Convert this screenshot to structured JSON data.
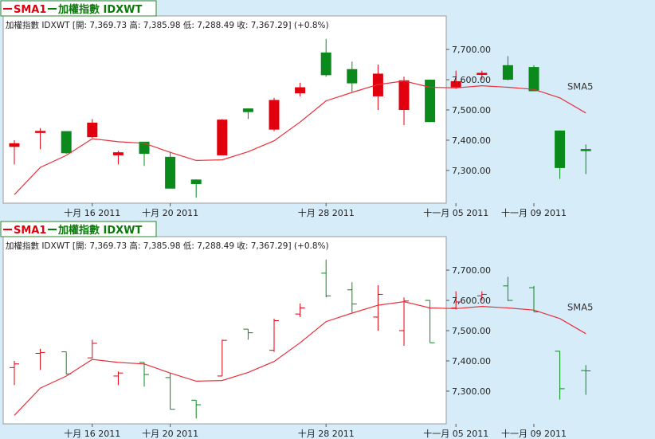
{
  "colors": {
    "background": "#d6ecf9",
    "plot_bg": "#ffffff",
    "up": "#e0000e",
    "down": "#0a8a1a",
    "sma": "#e8303a",
    "legend_sma": "#e0000e",
    "legend_index": "#0a7a0a"
  },
  "panels": [
    {
      "legend_sma": "SMA1",
      "legend_index": "加權指數 IDXWT",
      "info": "加權指數 IDXWT [開: 7,369.73  高: 7,385.98  低: 7,288.49  收: 7,367.29] (+0.8%)",
      "sma_label": "SMA5"
    },
    {
      "legend_sma": "SMA1",
      "legend_index": "加權指數 IDXWT",
      "info": "加權指數 IDXWT [開: 7,369.73  高: 7,385.98  低: 7,288.49  收: 7,367.29] (+0.8%)",
      "sma_label": "SMA5"
    }
  ],
  "chart_data": [
    {
      "type": "candlestick",
      "title": "加權指數 IDXWT",
      "ylim": [
        7200,
        7750
      ],
      "yticks": [
        "7,300.00",
        "7,400.00",
        "7,500.00",
        "7,600.00",
        "7,700.00"
      ],
      "ytick_values": [
        7300,
        7400,
        7500,
        7600,
        7700
      ],
      "xticks": [
        {
          "index": 3,
          "label": "十月 16 2011"
        },
        {
          "index": 6,
          "label": "十月 20 2011"
        },
        {
          "index": 12,
          "label": "十月 28 2011"
        },
        {
          "index": 17,
          "label": "十一月 05 2011"
        },
        {
          "index": 20,
          "label": "十一月 09 2011"
        }
      ],
      "ohlc": [
        {
          "o": 7378,
          "h": 7400,
          "l": 7320,
          "c": 7390
        },
        {
          "o": 7425,
          "h": 7440,
          "l": 7370,
          "c": 7428
        },
        {
          "o": 7430,
          "h": 7430,
          "l": 7355,
          "c": 7357
        },
        {
          "o": 7410,
          "h": 7470,
          "l": 7408,
          "c": 7458
        },
        {
          "o": 7350,
          "h": 7365,
          "l": 7320,
          "c": 7360
        },
        {
          "o": 7395,
          "h": 7395,
          "l": 7315,
          "c": 7355
        },
        {
          "o": 7345,
          "h": 7360,
          "l": 7240,
          "c": 7240
        },
        {
          "o": 7270,
          "h": 7270,
          "l": 7210,
          "c": 7255
        },
        {
          "o": 7350,
          "h": 7470,
          "l": 7350,
          "c": 7468
        },
        {
          "o": 7505,
          "h": 7505,
          "l": 7470,
          "c": 7493
        },
        {
          "o": 7435,
          "h": 7540,
          "l": 7430,
          "c": 7533
        },
        {
          "o": 7555,
          "h": 7590,
          "l": 7545,
          "c": 7575
        },
        {
          "o": 7690,
          "h": 7735,
          "l": 7610,
          "c": 7615
        },
        {
          "o": 7635,
          "h": 7660,
          "l": 7560,
          "c": 7588
        },
        {
          "o": 7545,
          "h": 7650,
          "l": 7500,
          "c": 7620
        },
        {
          "o": 7500,
          "h": 7610,
          "l": 7450,
          "c": 7598
        },
        {
          "o": 7600,
          "h": 7600,
          "l": 7460,
          "c": 7460
        },
        {
          "o": 7575,
          "h": 7630,
          "l": 7570,
          "c": 7595
        },
        {
          "o": 7615,
          "h": 7630,
          "l": 7600,
          "c": 7620
        },
        {
          "o": 7648,
          "h": 7678,
          "l": 7598,
          "c": 7600
        },
        {
          "o": 7642,
          "h": 7648,
          "l": 7562,
          "c": 7562
        },
        {
          "o": 7432,
          "h": 7432,
          "l": 7272,
          "c": 7308
        },
        {
          "o": 7368,
          "h": 7386,
          "l": 7288,
          "c": 7367
        }
      ],
      "sma5": [
        7220,
        7310,
        7350,
        7405,
        7395,
        7390,
        7360,
        7333,
        7335,
        7362,
        7398,
        7460,
        7530,
        7558,
        7584,
        7596,
        7575,
        7573,
        7580,
        7575,
        7568,
        7540,
        7490
      ],
      "sma_label": "SMA5",
      "grid": false,
      "legend": "top-left"
    },
    {
      "type": "ohlc",
      "title": "加權指數 IDXWT",
      "ylim": [
        7200,
        7750
      ],
      "yticks": [
        "7,300.00",
        "7,400.00",
        "7,500.00",
        "7,600.00",
        "7,700.00"
      ],
      "ytick_values": [
        7300,
        7400,
        7500,
        7600,
        7700
      ],
      "xticks": [
        {
          "index": 3,
          "label": "十月 16 2011"
        },
        {
          "index": 6,
          "label": "十月 20 2011"
        },
        {
          "index": 12,
          "label": "十月 28 2011"
        },
        {
          "index": 17,
          "label": "十一月 05 2011"
        },
        {
          "index": 20,
          "label": "十一月 09 2011"
        }
      ],
      "ohlc": [
        {
          "o": 7378,
          "h": 7400,
          "l": 7320,
          "c": 7390
        },
        {
          "o": 7425,
          "h": 7440,
          "l": 7370,
          "c": 7428
        },
        {
          "o": 7430,
          "h": 7430,
          "l": 7355,
          "c": 7357
        },
        {
          "o": 7410,
          "h": 7470,
          "l": 7408,
          "c": 7458
        },
        {
          "o": 7350,
          "h": 7365,
          "l": 7320,
          "c": 7360
        },
        {
          "o": 7395,
          "h": 7395,
          "l": 7315,
          "c": 7355
        },
        {
          "o": 7345,
          "h": 7360,
          "l": 7240,
          "c": 7240
        },
        {
          "o": 7270,
          "h": 7270,
          "l": 7210,
          "c": 7255
        },
        {
          "o": 7350,
          "h": 7470,
          "l": 7350,
          "c": 7468
        },
        {
          "o": 7505,
          "h": 7505,
          "l": 7470,
          "c": 7493
        },
        {
          "o": 7435,
          "h": 7540,
          "l": 7430,
          "c": 7533
        },
        {
          "o": 7555,
          "h": 7590,
          "l": 7545,
          "c": 7575
        },
        {
          "o": 7690,
          "h": 7735,
          "l": 7610,
          "c": 7615
        },
        {
          "o": 7635,
          "h": 7660,
          "l": 7560,
          "c": 7588
        },
        {
          "o": 7545,
          "h": 7650,
          "l": 7500,
          "c": 7620
        },
        {
          "o": 7500,
          "h": 7610,
          "l": 7450,
          "c": 7598
        },
        {
          "o": 7600,
          "h": 7600,
          "l": 7460,
          "c": 7460
        },
        {
          "o": 7575,
          "h": 7630,
          "l": 7570,
          "c": 7595
        },
        {
          "o": 7615,
          "h": 7630,
          "l": 7600,
          "c": 7620
        },
        {
          "o": 7648,
          "h": 7678,
          "l": 7598,
          "c": 7600
        },
        {
          "o": 7642,
          "h": 7648,
          "l": 7562,
          "c": 7562
        },
        {
          "o": 7432,
          "h": 7432,
          "l": 7272,
          "c": 7308
        },
        {
          "o": 7368,
          "h": 7386,
          "l": 7288,
          "c": 7367
        }
      ],
      "sma5": [
        7220,
        7310,
        7350,
        7405,
        7395,
        7390,
        7360,
        7333,
        7335,
        7362,
        7398,
        7460,
        7530,
        7558,
        7584,
        7596,
        7575,
        7573,
        7580,
        7575,
        7568,
        7540,
        7490
      ],
      "sma_label": "SMA5",
      "grid": false,
      "legend": "top-left"
    }
  ]
}
